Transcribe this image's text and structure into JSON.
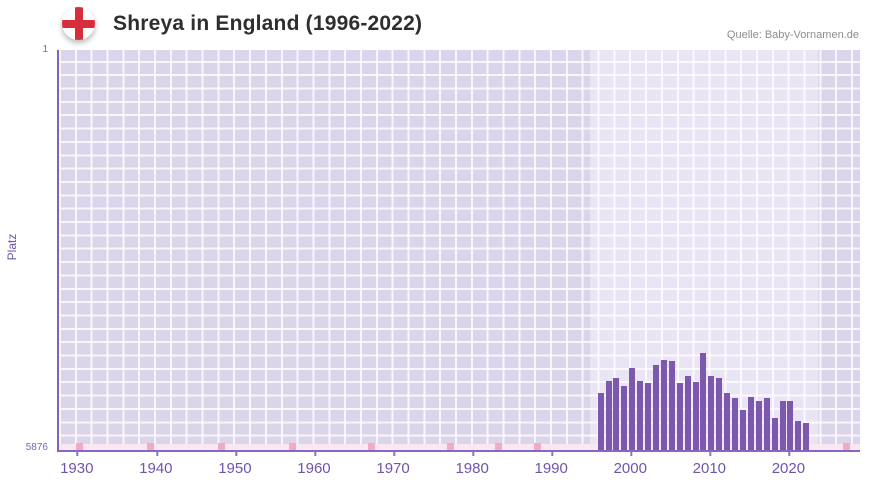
{
  "header": {
    "title": "Shreya in England (1996-2022)",
    "source": "Quelle: Baby-Vornamen.de"
  },
  "chart_data": {
    "type": "bar",
    "title": "Shreya in England (1996-2022)",
    "ylabel": "Platz",
    "y_axis": {
      "top_label": "1",
      "bottom_label": "5876",
      "min": 1,
      "max": 5876,
      "inverted": true
    },
    "x_axis": {
      "tick_labels": [
        "1930",
        "1940",
        "1950",
        "1960",
        "1970",
        "1980",
        "1990",
        "2000",
        "2010",
        "2020"
      ],
      "range": [
        1927.5,
        2028.8
      ]
    },
    "highlight_band": {
      "from": 1994.7,
      "to": 2023.5
    },
    "years": [
      1996,
      1997,
      1998,
      1999,
      2000,
      2001,
      2002,
      2003,
      2004,
      2005,
      2006,
      2007,
      2008,
      2009,
      2010,
      2011,
      2012,
      2013,
      2014,
      2015,
      2016,
      2017,
      2018,
      2019,
      2020,
      2021,
      2022
    ],
    "values": [
      5040,
      4860,
      4820,
      4940,
      4670,
      4860,
      4890,
      4630,
      4550,
      4570,
      4890,
      4790,
      4880,
      4450,
      4790,
      4820,
      5040,
      5110,
      5290,
      5090,
      5150,
      5110,
      5410,
      5150,
      5160,
      5450,
      5480
    ],
    "no_data_marker_years": [
      1930,
      1939,
      1948,
      1957,
      1967,
      1977,
      1983,
      1988,
      2027
    ],
    "grid": true,
    "legend": false,
    "colors": {
      "bar": "#7d58ad",
      "plot_background": "#dbd4eb",
      "highlight_band": "#eae5f5",
      "gridline": "#ffffff",
      "axis": "#8568c5",
      "tick_text": "#6f55ad",
      "marker_pink": "#f2aac6",
      "baseline_strip": "#f9e7f1",
      "flag_cross_red": "#d62e3c",
      "title_text": "#2e2e2e",
      "source_text": "#8d8d8d"
    }
  }
}
